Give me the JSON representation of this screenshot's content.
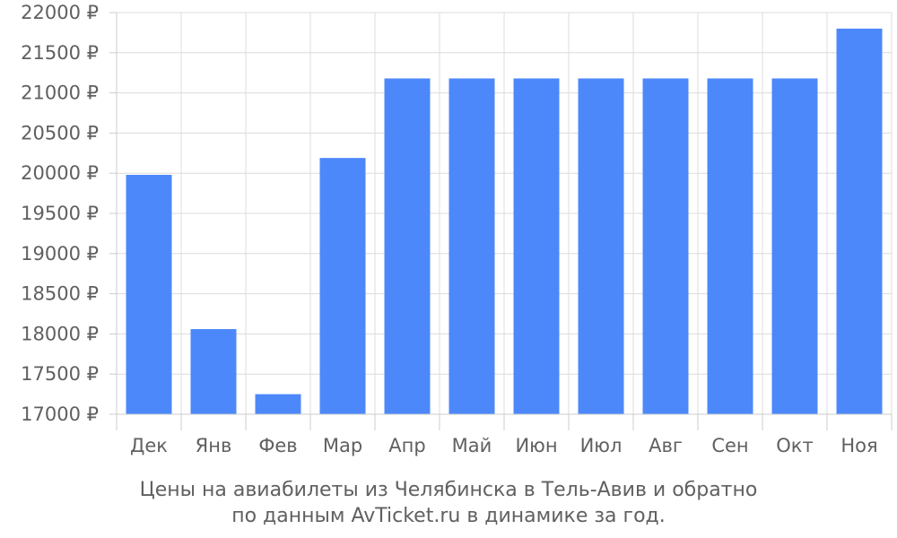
{
  "chart_data": {
    "type": "bar",
    "categories": [
      "Дек",
      "Янв",
      "Фев",
      "Мар",
      "Апр",
      "Май",
      "Июн",
      "Июл",
      "Авг",
      "Сен",
      "Окт",
      "Ноя"
    ],
    "values": [
      19980,
      18060,
      17250,
      20190,
      21180,
      21180,
      21180,
      21180,
      21180,
      21180,
      21180,
      21800
    ],
    "ylim": [
      17000,
      22000
    ],
    "yticks": [
      17000,
      17500,
      18000,
      18500,
      19000,
      19500,
      20000,
      20500,
      21000,
      21500,
      22000
    ],
    "y_unit": "₽",
    "bar_color": "#4d88fa",
    "grid": true,
    "title_line1": "Цены на авиабилеты из Челябинска в Тель-Авив и обратно",
    "title_line2": "по данным AvTicket.ru в динамике за год."
  }
}
